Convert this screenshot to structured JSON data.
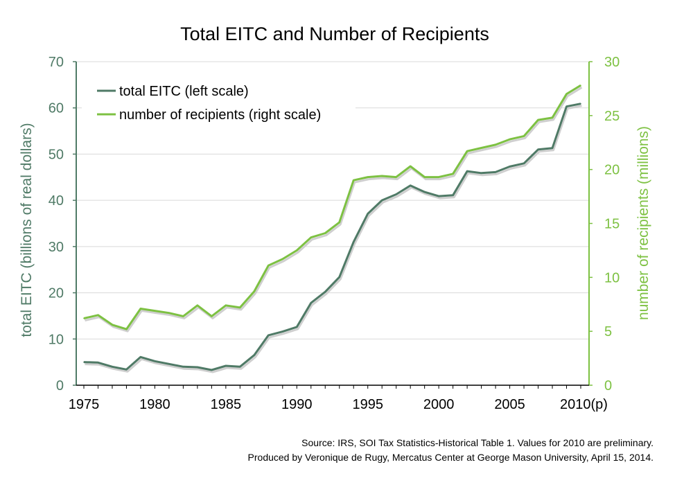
{
  "chart_data": {
    "type": "line",
    "title": "Total EITC and Number of Recipients",
    "x_tick_labels": [
      "1975",
      "1980",
      "1985",
      "1990",
      "1995",
      "2000",
      "2005",
      "2010(p)"
    ],
    "x": [
      1975,
      1976,
      1977,
      1978,
      1979,
      1980,
      1981,
      1982,
      1983,
      1984,
      1985,
      1986,
      1987,
      1988,
      1989,
      1990,
      1991,
      1992,
      1993,
      1994,
      1995,
      1996,
      1997,
      1998,
      1999,
      2000,
      2001,
      2002,
      2003,
      2004,
      2005,
      2006,
      2007,
      2008,
      2009,
      2010
    ],
    "xlim": [
      1975,
      2010
    ],
    "left_axis": {
      "label": "total EITC (billions of real dollars)",
      "ylim": [
        0,
        70
      ],
      "ticks": [
        0,
        10,
        20,
        30,
        40,
        50,
        60,
        70
      ],
      "color": "#4f7a66"
    },
    "right_axis": {
      "label": "number of recipients (millions)",
      "ylim": [
        0,
        30
      ],
      "ticks": [
        0,
        5,
        10,
        15,
        20,
        25,
        30
      ],
      "color": "#7dc142"
    },
    "series": [
      {
        "name": "total EITC (left scale)",
        "axis": "left",
        "color": "#4f7a66",
        "values": [
          5.0,
          4.9,
          4.0,
          3.4,
          6.1,
          5.2,
          4.6,
          4.0,
          3.9,
          3.3,
          4.2,
          4.0,
          6.5,
          10.8,
          11.6,
          12.6,
          17.8,
          20.2,
          23.4,
          31.0,
          37.1,
          40.0,
          41.3,
          43.2,
          41.8,
          40.9,
          41.1,
          46.3,
          45.9,
          46.1,
          47.3,
          48.0,
          51.0,
          51.3,
          60.3,
          60.9
        ]
      },
      {
        "name": "number of recipients (right scale)",
        "axis": "right",
        "color": "#7dc142",
        "values": [
          6.2,
          6.5,
          5.6,
          5.2,
          7.1,
          6.9,
          6.7,
          6.4,
          7.4,
          6.4,
          7.4,
          7.2,
          8.7,
          11.1,
          11.7,
          12.5,
          13.7,
          14.1,
          15.1,
          19.0,
          19.3,
          19.4,
          19.3,
          20.3,
          19.3,
          19.3,
          19.6,
          21.7,
          22.0,
          22.3,
          22.8,
          23.1,
          24.6,
          24.8,
          27.0,
          27.8
        ]
      }
    ],
    "legend_position": "top-left",
    "grid": true
  },
  "footer": {
    "source_line": "Source: IRS, SOI Tax Statistics-Historical Table 1. Values for 2010 are preliminary.",
    "credit_line": "Produced by Veronique de Rugy, Mercatus Center at George Mason University, April 15, 2014."
  }
}
